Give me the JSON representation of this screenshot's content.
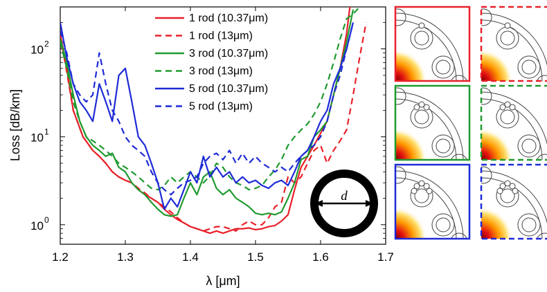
{
  "chart_data": {
    "type": "line",
    "xlabel": "λ [μm]",
    "ylabel": "Loss [dB/km]",
    "yscale": "log",
    "xlim": [
      1.2,
      1.7
    ],
    "ylim": [
      0.6,
      300
    ],
    "xticks": [
      "1.2",
      "1.3",
      "1.4",
      "1.5",
      "1.6",
      "1.7"
    ],
    "yticks": [
      {
        "base": "10",
        "exp": "0",
        "value": 1
      },
      {
        "base": "10",
        "exp": "1",
        "value": 10
      },
      {
        "base": "10",
        "exp": "2",
        "value": 100
      }
    ],
    "legend_position": "top-center",
    "grid": false,
    "series": [
      {
        "name": "1 rod (10.37μm)",
        "color": "#e8202a",
        "dash": false,
        "points": [
          [
            1.2,
            150
          ],
          [
            1.21,
            60
          ],
          [
            1.22,
            20
          ],
          [
            1.235,
            10
          ],
          [
            1.25,
            7
          ],
          [
            1.26,
            6
          ],
          [
            1.27,
            5
          ],
          [
            1.28,
            4
          ],
          [
            1.29,
            3.5
          ],
          [
            1.3,
            3.2
          ],
          [
            1.31,
            3.0
          ],
          [
            1.32,
            2.5
          ],
          [
            1.33,
            2.2
          ],
          [
            1.34,
            2.0
          ],
          [
            1.35,
            1.8
          ],
          [
            1.36,
            1.5
          ],
          [
            1.37,
            1.3
          ],
          [
            1.38,
            1.15
          ],
          [
            1.39,
            1.05
          ],
          [
            1.4,
            0.95
          ],
          [
            1.41,
            0.9
          ],
          [
            1.42,
            0.85
          ],
          [
            1.43,
            0.8
          ],
          [
            1.44,
            0.85
          ],
          [
            1.45,
            0.8
          ],
          [
            1.46,
            0.85
          ],
          [
            1.47,
            0.9
          ],
          [
            1.48,
            0.9
          ],
          [
            1.49,
            0.92
          ],
          [
            1.5,
            0.88
          ],
          [
            1.51,
            0.9
          ],
          [
            1.52,
            0.95
          ],
          [
            1.53,
            0.98
          ],
          [
            1.54,
            1.1
          ],
          [
            1.55,
            1.3
          ],
          [
            1.56,
            2.5
          ],
          [
            1.57,
            4.5
          ],
          [
            1.58,
            6
          ],
          [
            1.59,
            8
          ],
          [
            1.6,
            11
          ],
          [
            1.61,
            15
          ],
          [
            1.62,
            30
          ],
          [
            1.63,
            60
          ],
          [
            1.64,
            150
          ],
          [
            1.645,
            300
          ]
        ]
      },
      {
        "name": "1 rod (13μm)",
        "color": "#e8202a",
        "dash": true,
        "points": [
          [
            1.2,
            140
          ],
          [
            1.21,
            55
          ],
          [
            1.22,
            20
          ],
          [
            1.235,
            10
          ],
          [
            1.25,
            7
          ],
          [
            1.26,
            6
          ],
          [
            1.27,
            5
          ],
          [
            1.28,
            4
          ],
          [
            1.29,
            3.5
          ],
          [
            1.3,
            3.2
          ],
          [
            1.31,
            3.0
          ],
          [
            1.32,
            2.6
          ],
          [
            1.33,
            2.3
          ],
          [
            1.34,
            2.0
          ],
          [
            1.35,
            1.8
          ],
          [
            1.36,
            1.6
          ],
          [
            1.37,
            1.4
          ],
          [
            1.38,
            1.2
          ],
          [
            1.39,
            1.05
          ],
          [
            1.4,
            0.95
          ],
          [
            1.41,
            0.9
          ],
          [
            1.42,
            0.85
          ],
          [
            1.43,
            0.9
          ],
          [
            1.44,
            0.95
          ],
          [
            1.45,
            0.95
          ],
          [
            1.46,
            0.9
          ],
          [
            1.47,
            0.85
          ],
          [
            1.48,
            1.0
          ],
          [
            1.49,
            1.1
          ],
          [
            1.5,
            1.0
          ],
          [
            1.51,
            1.0
          ],
          [
            1.52,
            1.2
          ],
          [
            1.53,
            1.6
          ],
          [
            1.54,
            1.8
          ],
          [
            1.55,
            3.5
          ],
          [
            1.56,
            3.0
          ],
          [
            1.57,
            3.5
          ],
          [
            1.58,
            5
          ],
          [
            1.59,
            7
          ],
          [
            1.6,
            8
          ],
          [
            1.61,
            5
          ],
          [
            1.62,
            7
          ],
          [
            1.63,
            9
          ],
          [
            1.64,
            12
          ],
          [
            1.65,
            30
          ],
          [
            1.66,
            80
          ],
          [
            1.67,
            200
          ]
        ]
      },
      {
        "name": "3 rod (10.37μm)",
        "color": "#1f9a2e",
        "dash": false,
        "points": [
          [
            1.2,
            130
          ],
          [
            1.21,
            70
          ],
          [
            1.22,
            30
          ],
          [
            1.23,
            15
          ],
          [
            1.24,
            10
          ],
          [
            1.25,
            8
          ],
          [
            1.26,
            7
          ],
          [
            1.27,
            6
          ],
          [
            1.28,
            6.5
          ],
          [
            1.29,
            4.5
          ],
          [
            1.3,
            4
          ],
          [
            1.31,
            3.0
          ],
          [
            1.32,
            2.5
          ],
          [
            1.33,
            2.2
          ],
          [
            1.34,
            1.8
          ],
          [
            1.35,
            1.5
          ],
          [
            1.36,
            1.3
          ],
          [
            1.37,
            1.25
          ],
          [
            1.38,
            1.3
          ],
          [
            1.39,
            2.0
          ],
          [
            1.4,
            3.0
          ],
          [
            1.41,
            2.2
          ],
          [
            1.42,
            3.5
          ],
          [
            1.43,
            4.0
          ],
          [
            1.44,
            2.6
          ],
          [
            1.45,
            2.2
          ],
          [
            1.46,
            2.5
          ],
          [
            1.47,
            2.0
          ],
          [
            1.48,
            1.8
          ],
          [
            1.49,
            1.6
          ],
          [
            1.5,
            1.35
          ],
          [
            1.51,
            1.3
          ],
          [
            1.52,
            1.35
          ],
          [
            1.53,
            1.3
          ],
          [
            1.54,
            1.4
          ],
          [
            1.55,
            2.0
          ],
          [
            1.56,
            3.0
          ],
          [
            1.57,
            5.5
          ],
          [
            1.58,
            6
          ],
          [
            1.59,
            10
          ],
          [
            1.6,
            12
          ],
          [
            1.61,
            15
          ],
          [
            1.62,
            30
          ],
          [
            1.63,
            60
          ],
          [
            1.64,
            120
          ],
          [
            1.65,
            280
          ]
        ]
      },
      {
        "name": "3 rod (13μm)",
        "color": "#1f9a2e",
        "dash": true,
        "points": [
          [
            1.2,
            120
          ],
          [
            1.21,
            60
          ],
          [
            1.22,
            25
          ],
          [
            1.23,
            15
          ],
          [
            1.24,
            10
          ],
          [
            1.25,
            9
          ],
          [
            1.26,
            8
          ],
          [
            1.27,
            7
          ],
          [
            1.28,
            6
          ],
          [
            1.29,
            5
          ],
          [
            1.3,
            4.5
          ],
          [
            1.31,
            4
          ],
          [
            1.32,
            3.5
          ],
          [
            1.33,
            3
          ],
          [
            1.34,
            2.6
          ],
          [
            1.35,
            2.5
          ],
          [
            1.36,
            2.8
          ],
          [
            1.37,
            3.5
          ],
          [
            1.38,
            3.0
          ],
          [
            1.39,
            3.5
          ],
          [
            1.4,
            4.0
          ],
          [
            1.41,
            3.5
          ],
          [
            1.42,
            3.0
          ],
          [
            1.43,
            3.6
          ],
          [
            1.44,
            5.0
          ],
          [
            1.45,
            4.5
          ],
          [
            1.46,
            3.5
          ],
          [
            1.47,
            3.0
          ],
          [
            1.48,
            2.8
          ],
          [
            1.49,
            2.5
          ],
          [
            1.5,
            2.6
          ],
          [
            1.51,
            2.8
          ],
          [
            1.52,
            3.5
          ],
          [
            1.53,
            4.2
          ],
          [
            1.54,
            5.5
          ],
          [
            1.55,
            8
          ],
          [
            1.56,
            10
          ],
          [
            1.57,
            12
          ],
          [
            1.58,
            14
          ],
          [
            1.59,
            18
          ],
          [
            1.6,
            25
          ],
          [
            1.61,
            40
          ],
          [
            1.62,
            70
          ],
          [
            1.63,
            130
          ],
          [
            1.64,
            220
          ],
          [
            1.65,
            250
          ],
          [
            1.66,
            300
          ]
        ]
      },
      {
        "name": "5 rod (10.37μm)",
        "color": "#1d2ad6",
        "dash": false,
        "points": [
          [
            1.2,
            200
          ],
          [
            1.21,
            80
          ],
          [
            1.22,
            40
          ],
          [
            1.23,
            25
          ],
          [
            1.24,
            20
          ],
          [
            1.25,
            15
          ],
          [
            1.26,
            40
          ],
          [
            1.27,
            25
          ],
          [
            1.28,
            15
          ],
          [
            1.29,
            50
          ],
          [
            1.3,
            60
          ],
          [
            1.31,
            25
          ],
          [
            1.32,
            10
          ],
          [
            1.33,
            8
          ],
          [
            1.34,
            5
          ],
          [
            1.35,
            3
          ],
          [
            1.36,
            1.5
          ],
          [
            1.37,
            2
          ],
          [
            1.38,
            1.6
          ],
          [
            1.39,
            2.5
          ],
          [
            1.4,
            4
          ],
          [
            1.41,
            3
          ],
          [
            1.42,
            6
          ],
          [
            1.43,
            3.5
          ],
          [
            1.44,
            4.5
          ],
          [
            1.45,
            3.5
          ],
          [
            1.46,
            4
          ],
          [
            1.47,
            3
          ],
          [
            1.48,
            3.5
          ],
          [
            1.49,
            3
          ],
          [
            1.5,
            3.2
          ],
          [
            1.51,
            2.8
          ],
          [
            1.52,
            2.6
          ],
          [
            1.53,
            3
          ],
          [
            1.54,
            3.2
          ],
          [
            1.55,
            2.8
          ],
          [
            1.56,
            4
          ],
          [
            1.57,
            6
          ],
          [
            1.58,
            7
          ],
          [
            1.59,
            10
          ],
          [
            1.6,
            15
          ],
          [
            1.61,
            20
          ],
          [
            1.62,
            40
          ],
          [
            1.63,
            60
          ],
          [
            1.64,
            100
          ],
          [
            1.65,
            200
          ]
        ]
      },
      {
        "name": "5 rod (13μm)",
        "color": "#1d2ad6",
        "dash": true,
        "points": [
          [
            1.2,
            160
          ],
          [
            1.21,
            90
          ],
          [
            1.22,
            40
          ],
          [
            1.23,
            30
          ],
          [
            1.24,
            25
          ],
          [
            1.25,
            30
          ],
          [
            1.26,
            90
          ],
          [
            1.27,
            40
          ],
          [
            1.28,
            20
          ],
          [
            1.29,
            15
          ],
          [
            1.3,
            10
          ],
          [
            1.31,
            8
          ],
          [
            1.32,
            7
          ],
          [
            1.33,
            6
          ],
          [
            1.34,
            4
          ],
          [
            1.35,
            3
          ],
          [
            1.36,
            2.5
          ],
          [
            1.37,
            2.2
          ],
          [
            1.38,
            2.6
          ],
          [
            1.39,
            3.0
          ],
          [
            1.4,
            3.2
          ],
          [
            1.41,
            3.5
          ],
          [
            1.42,
            5.0
          ],
          [
            1.43,
            6.0
          ],
          [
            1.44,
            6.5
          ],
          [
            1.45,
            5.5
          ],
          [
            1.46,
            7.0
          ],
          [
            1.47,
            5.0
          ],
          [
            1.48,
            6.5
          ],
          [
            1.49,
            5.0
          ],
          [
            1.5,
            6.0
          ],
          [
            1.51,
            5.0
          ],
          [
            1.52,
            4.5
          ],
          [
            1.53,
            4.0
          ],
          [
            1.54,
            4.5
          ],
          [
            1.55,
            4.0
          ],
          [
            1.56,
            5.0
          ],
          [
            1.57,
            6.0
          ],
          [
            1.58,
            7.0
          ],
          [
            1.59,
            8.0
          ],
          [
            1.6,
            10
          ],
          [
            1.61,
            15
          ],
          [
            1.62,
            30
          ],
          [
            1.63,
            50
          ],
          [
            1.64,
            100
          ],
          [
            1.65,
            200
          ]
        ]
      }
    ],
    "annotation": {
      "label": "d"
    },
    "insets": [
      {
        "rods": 1,
        "border_color": "#e8202a",
        "dash": false
      },
      {
        "rods": 1,
        "border_color": "#e8202a",
        "dash": true
      },
      {
        "rods": 3,
        "border_color": "#1f9a2e",
        "dash": false
      },
      {
        "rods": 3,
        "border_color": "#1f9a2e",
        "dash": true
      },
      {
        "rods": 5,
        "border_color": "#1d2ad6",
        "dash": false
      },
      {
        "rods": 5,
        "border_color": "#1d2ad6",
        "dash": true
      }
    ]
  }
}
